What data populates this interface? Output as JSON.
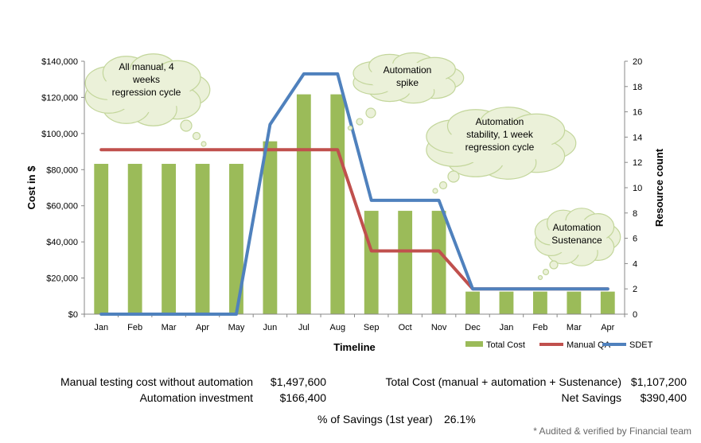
{
  "chart_data": {
    "type": "bar+line",
    "categories": [
      "Jan",
      "Feb",
      "Mar",
      "Apr",
      "May",
      "Jun",
      "Jul",
      "Aug",
      "Sep",
      "Oct",
      "Nov",
      "Dec",
      "Jan",
      "Feb",
      "Mar",
      "Apr"
    ],
    "primary_axis": {
      "label": "Cost in $",
      "min": 0,
      "max": 140000,
      "step": 20000,
      "ticks": [
        "$0",
        "$20,000",
        "$40,000",
        "$60,000",
        "$80,000",
        "$100,000",
        "$120,000",
        "$140,000"
      ]
    },
    "secondary_axis": {
      "label": "Resource count",
      "min": 0,
      "max": 20,
      "step": 2,
      "ticks": [
        "0",
        "2",
        "4",
        "6",
        "8",
        "10",
        "12",
        "14",
        "16",
        "18",
        "20"
      ]
    },
    "xlabel": "Timeline",
    "series": [
      {
        "name": "Total Cost",
        "type": "bar",
        "axis": "primary",
        "color": "#9bbb59",
        "values": [
          83200,
          83200,
          83200,
          83200,
          83200,
          95680,
          121680,
          121680,
          57200,
          57200,
          57200,
          12480,
          12480,
          12480,
          12480,
          12480
        ]
      },
      {
        "name": "Manual QA",
        "type": "line",
        "axis": "secondary",
        "color": "#c0504d",
        "values": [
          13,
          13,
          13,
          13,
          13,
          13,
          13,
          13,
          5,
          5,
          5,
          2,
          2,
          2,
          2,
          2
        ]
      },
      {
        "name": "SDET",
        "type": "line",
        "axis": "secondary",
        "color": "#4f81bd",
        "values": [
          0,
          0,
          0,
          0,
          0,
          15,
          19,
          19,
          9,
          9,
          9,
          2,
          2,
          2,
          2,
          2
        ]
      }
    ],
    "annotations": [
      {
        "lines": [
          "All manual, 4",
          "weeks",
          "regression cycle"
        ]
      },
      {
        "lines": [
          "Automation",
          "spike"
        ]
      },
      {
        "lines": [
          "Automation",
          "stability, 1 week",
          "regression cycle"
        ]
      },
      {
        "lines": [
          "Automation",
          "Sustenance"
        ]
      }
    ]
  },
  "summary": {
    "manual_cost_label": "Manual testing cost without automation",
    "manual_cost_value": "$1,497,600",
    "automation_investment_label": "Automation investment",
    "automation_investment_value": "$166,400",
    "total_cost_label": "Total Cost (manual + automation + Sustenance)",
    "total_cost_value": "$1,107,200",
    "net_savings_label": "Net Savings",
    "net_savings_value": "$390,400",
    "savings_pct_label": "% of Savings (1st year)",
    "savings_pct_value": "26.1%",
    "footnote": "* Audited & verified by Financial team"
  }
}
